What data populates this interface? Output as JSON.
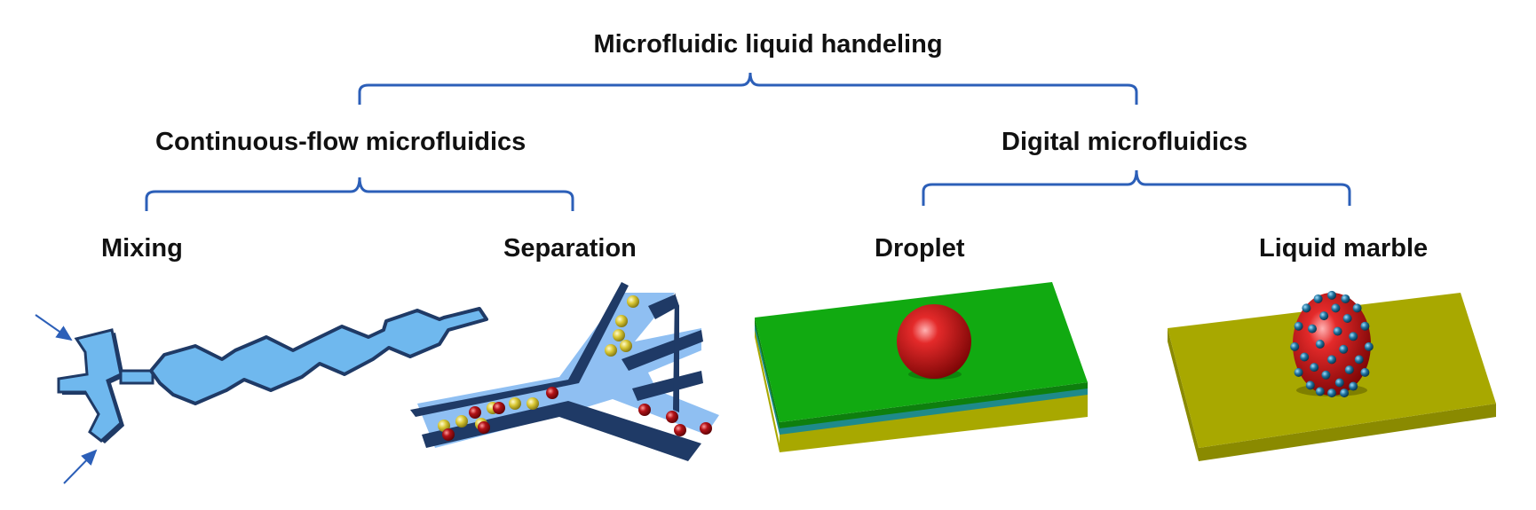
{
  "title": "Microfluidic liquid handeling",
  "categories": [
    {
      "label": "Continuous-flow microfluidics",
      "children": [
        {
          "label": "Mixing"
        },
        {
          "label": "Separation"
        }
      ]
    },
    {
      "label": "Digital microfluidics",
      "children": [
        {
          "label": "Droplet"
        },
        {
          "label": "Liquid marble"
        }
      ]
    }
  ],
  "colors": {
    "bracket": "#2c5fb8",
    "channel_fill": "#6fb8ee",
    "channel_wall": "#1f3a66",
    "separation_floor": "#8fbff2",
    "particle_red": "#b31217",
    "particle_yellow": "#d9c835",
    "substrate_green": "#11aa11",
    "substrate_olive": "#a8a800",
    "droplet_red": "#d41a1a",
    "coating_particle": "#1e6f9a"
  },
  "icons": [
    "mixing-channel-illustration",
    "separation-channel-illustration",
    "droplet-on-substrate-illustration",
    "liquid-marble-illustration"
  ]
}
